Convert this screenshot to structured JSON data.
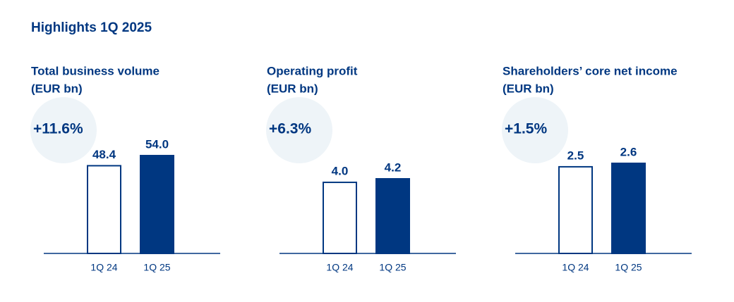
{
  "title": "Highlights 1Q 2025",
  "chart_data": [
    {
      "type": "bar",
      "title": "Total business volume",
      "subtitle": "(EUR bn)",
      "annotation": "+11.6%",
      "categories": [
        "1Q 24",
        "1Q 25"
      ],
      "values": [
        48.4,
        54
      ],
      "value_labels": [
        "48.4",
        "54.0"
      ],
      "colors": [
        "#ffffff",
        "#003781"
      ],
      "edgecolor": "#003781",
      "badge_color": "#eef4f8"
    },
    {
      "type": "bar",
      "title": "Operating profit",
      "subtitle": "(EUR bn)",
      "annotation": "+6.3%",
      "categories": [
        "1Q 24",
        "1Q 25"
      ],
      "values": [
        4,
        4.2
      ],
      "value_labels": [
        "4.0",
        "4.2"
      ],
      "colors": [
        "#ffffff",
        "#003781"
      ],
      "edgecolor": "#003781",
      "badge_color": "#eef4f8"
    },
    {
      "type": "bar",
      "title": "Shareholders’ core net income",
      "subtitle": "(EUR bn)",
      "annotation": "+1.5%",
      "categories": [
        "1Q 24",
        "1Q 25"
      ],
      "values": [
        2.5,
        2.6
      ],
      "value_labels": [
        "2.5",
        "2.6"
      ],
      "colors": [
        "#ffffff",
        "#003781"
      ],
      "edgecolor": "#003781",
      "badge_color": "#eef4f8"
    }
  ]
}
